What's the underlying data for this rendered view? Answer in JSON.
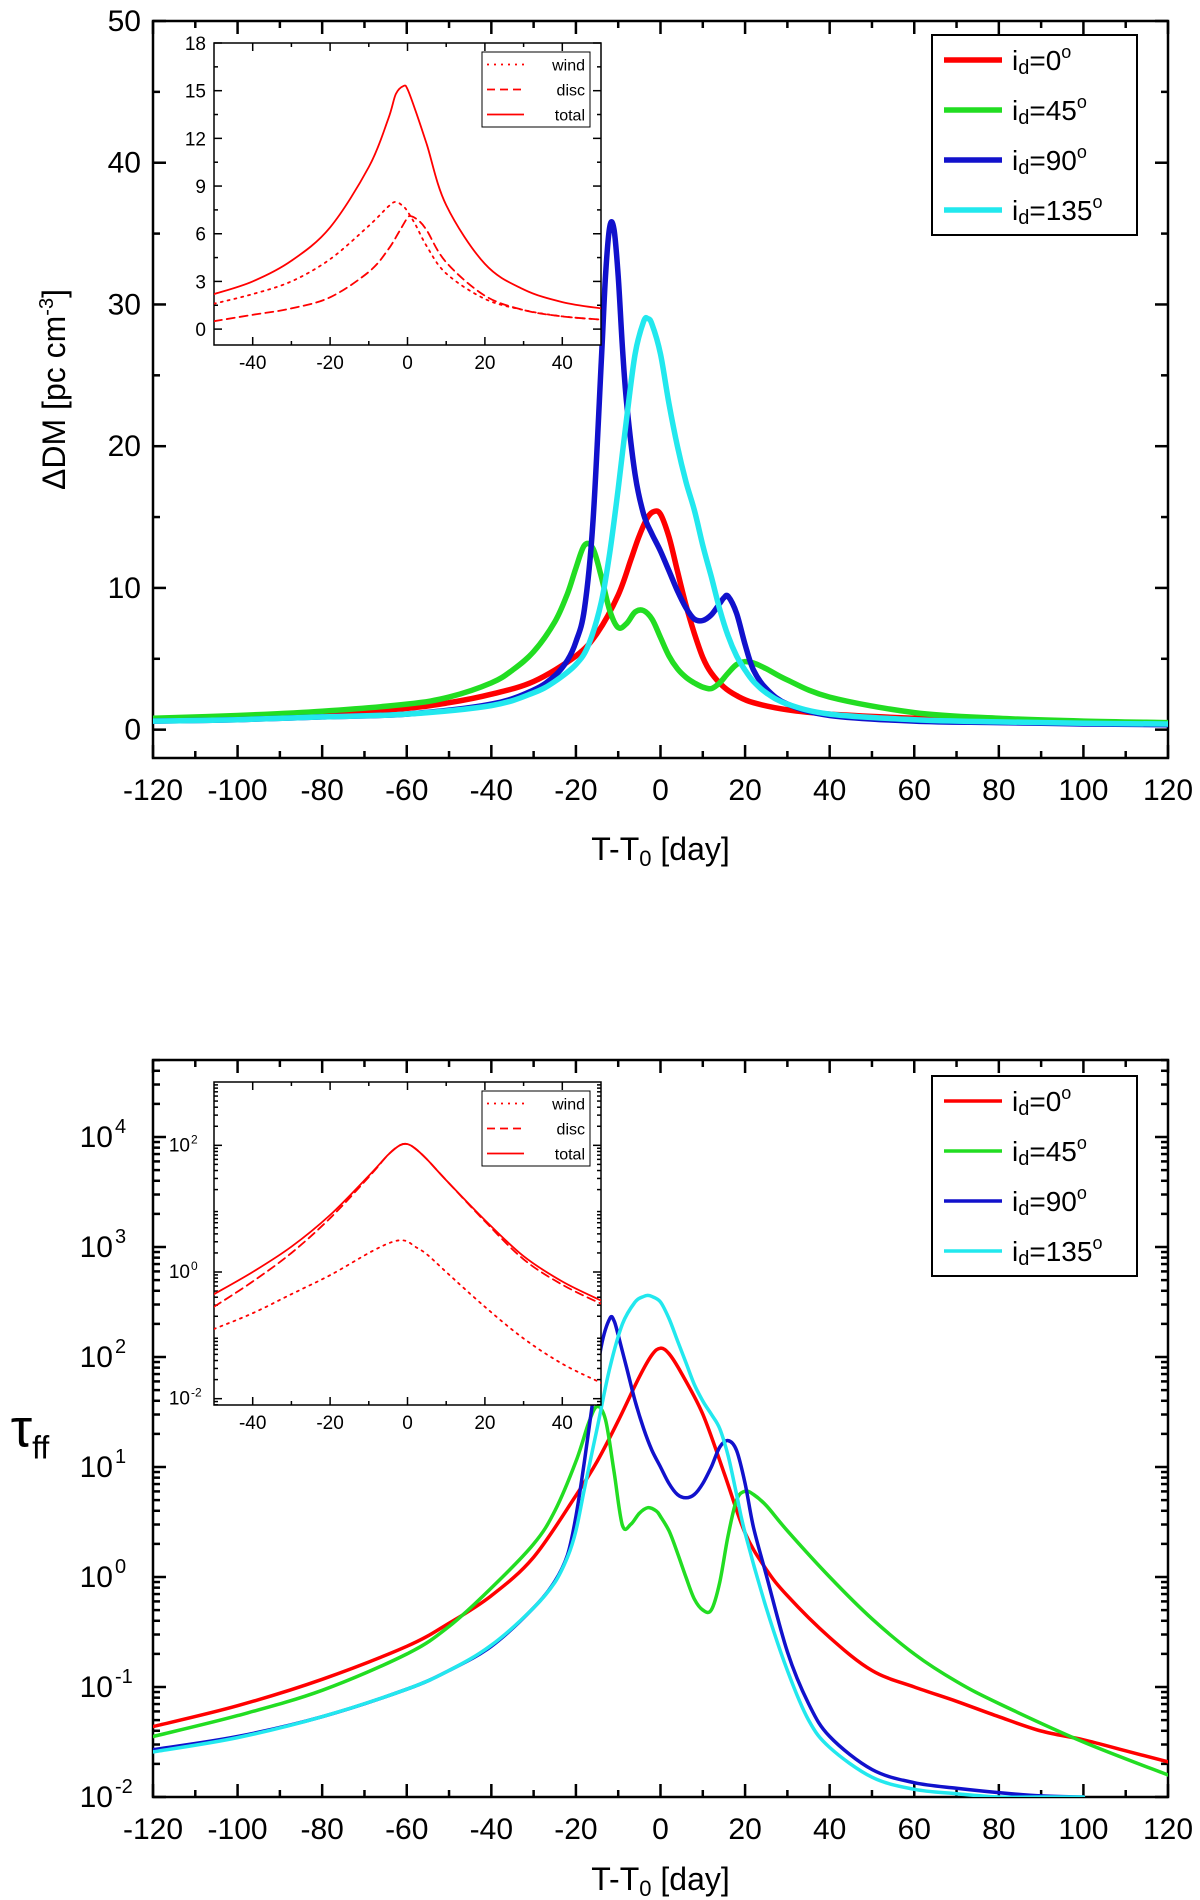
{
  "chart_data": [
    {
      "id": "top",
      "type": "line",
      "ylabel": "ΔDM [pc cm",
      "ylabel_sup": "-3",
      "ylabel_close": "]",
      "xlabel": "T-T",
      "xlabel_sub": "0",
      "xlabel_tail": " [day]",
      "xlim": [
        -120,
        120
      ],
      "ylim": [
        -2,
        50
      ],
      "yscale": "linear",
      "xticks": [
        -120,
        -100,
        -80,
        -60,
        -40,
        -20,
        0,
        20,
        40,
        60,
        80,
        100,
        120
      ],
      "yticks": [
        0,
        10,
        20,
        30,
        40,
        50
      ],
      "legend_position": "top-right",
      "series": [
        {
          "name": "i",
          "name_sub": "d",
          "name_tail": "=0",
          "name_sup": "o",
          "color": "#ff0000",
          "x": [
            -120,
            -100,
            -80,
            -60,
            -50,
            -40,
            -30,
            -20,
            -15,
            -10,
            -7,
            -5,
            -3,
            -1.5,
            0,
            2,
            4,
            6,
            8,
            10,
            12,
            15,
            18,
            22,
            30,
            40,
            60,
            80,
            100,
            120
          ],
          "y": [
            0.7,
            0.9,
            1.1,
            1.5,
            1.9,
            2.5,
            3.4,
            5.2,
            6.8,
            9.5,
            12,
            13.7,
            15,
            15.4,
            15.2,
            13.6,
            11.2,
            8.8,
            6.8,
            5.1,
            4,
            3,
            2.4,
            1.9,
            1.4,
            1.1,
            0.8,
            0.6,
            0.5,
            0.4
          ]
        },
        {
          "name": "i",
          "name_sub": "d",
          "name_tail": "=45",
          "name_sup": "o",
          "color": "#22dd22",
          "x": [
            -120,
            -100,
            -80,
            -60,
            -50,
            -40,
            -35,
            -30,
            -25,
            -22,
            -20,
            -18,
            -16,
            -14,
            -12,
            -10,
            -8,
            -6,
            -4,
            -2,
            0,
            2,
            4,
            6,
            8,
            10,
            12,
            14,
            16,
            18,
            20,
            22,
            25,
            30,
            40,
            60,
            80,
            100,
            120
          ],
          "y": [
            0.8,
            1.0,
            1.3,
            1.8,
            2.3,
            3.3,
            4.2,
            5.5,
            7.6,
            9.6,
            11.4,
            13.0,
            12.8,
            10.8,
            8.4,
            7.2,
            7.5,
            8.3,
            8.4,
            7.8,
            6.5,
            5.2,
            4.3,
            3.7,
            3.3,
            3.0,
            2.9,
            3.3,
            4.0,
            4.6,
            4.8,
            4.7,
            4.3,
            3.5,
            2.3,
            1.2,
            0.8,
            0.6,
            0.5
          ]
        },
        {
          "name": "i",
          "name_sub": "d",
          "name_tail": "=90",
          "name_sup": "o",
          "color": "#1111cc",
          "x": [
            -120,
            -100,
            -80,
            -60,
            -40,
            -30,
            -25,
            -22,
            -20,
            -18,
            -16,
            -14,
            -13,
            -12,
            -11,
            -10,
            -9,
            -8,
            -6,
            -4,
            -2,
            0,
            2,
            4,
            6,
            8,
            10,
            12,
            14,
            15,
            16,
            18,
            20,
            22,
            25,
            30,
            40,
            60,
            80,
            100,
            120
          ],
          "y": [
            0.6,
            0.7,
            0.9,
            1.1,
            1.8,
            2.8,
            3.8,
            4.9,
            6.2,
            8.5,
            14.5,
            26,
            32,
            35.5,
            35.3,
            32,
            27,
            23,
            18,
            15.2,
            13.8,
            12.6,
            11.2,
            9.8,
            8.6,
            7.8,
            7.7,
            8.1,
            8.9,
            9.3,
            9.4,
            8.2,
            6,
            4.2,
            2.9,
            1.8,
            1,
            0.6,
            0.5,
            0.4,
            0.35
          ]
        },
        {
          "name": "i",
          "name_sub": "d",
          "name_tail": "=135",
          "name_sup": "o",
          "color": "#22e8ee",
          "x": [
            -120,
            -100,
            -80,
            -60,
            -40,
            -30,
            -25,
            -20,
            -17,
            -14,
            -12,
            -10,
            -8,
            -6,
            -4,
            -3,
            -2,
            0,
            2,
            4,
            6,
            8,
            10,
            12,
            14,
            16,
            18,
            20,
            22,
            25,
            30,
            40,
            60,
            80,
            100,
            120
          ],
          "y": [
            0.6,
            0.7,
            0.9,
            1.1,
            1.7,
            2.6,
            3.4,
            4.6,
            6,
            9,
            12.5,
            17,
            22,
            26.5,
            28.8,
            29,
            28.6,
            26.5,
            23,
            20,
            17.5,
            15.5,
            13,
            10.8,
            8.5,
            6.6,
            5.2,
            4.2,
            3.4,
            2.6,
            1.8,
            1.1,
            0.7,
            0.55,
            0.45,
            0.4
          ]
        }
      ],
      "inset": {
        "xlim": [
          -50,
          50
        ],
        "ylim": [
          -1,
          18
        ],
        "xticks": [
          -40,
          -20,
          0,
          20,
          40
        ],
        "yticks": [
          0,
          3,
          6,
          9,
          12,
          15,
          18
        ],
        "yscale": "linear",
        "legend_position": "top-right",
        "color": "#ff0000",
        "series": [
          {
            "name": "wind",
            "style": "dotted",
            "x": [
              -50,
              -40,
              -30,
              -20,
              -10,
              -5,
              -3,
              -1,
              0,
              2,
              5,
              10,
              20,
              30,
              40,
              50
            ],
            "y": [
              1.6,
              2.2,
              3.0,
              4.4,
              6.5,
              7.7,
              8.0,
              7.7,
              7.4,
              6.6,
              5.2,
              3.5,
              1.9,
              1.2,
              0.8,
              0.6
            ]
          },
          {
            "name": "disc",
            "style": "dashed",
            "x": [
              -50,
              -40,
              -30,
              -20,
              -10,
              -5,
              -2,
              0,
              1,
              3,
              5,
              10,
              20,
              30,
              40,
              50
            ],
            "y": [
              0.5,
              0.9,
              1.3,
              2.0,
              3.6,
              5.0,
              6.2,
              7.0,
              7.1,
              6.8,
              6.2,
              4.2,
              2.1,
              1.2,
              0.8,
              0.6
            ]
          },
          {
            "name": "total",
            "style": "solid",
            "x": [
              -50,
              -40,
              -30,
              -20,
              -10,
              -5,
              -3,
              -1,
              0,
              2,
              5,
              10,
              20,
              30,
              40,
              50
            ],
            "y": [
              2.2,
              3.0,
              4.3,
              6.4,
              10.2,
              13.2,
              14.8,
              15.3,
              15.1,
              13.8,
              11.6,
              7.8,
              4.1,
              2.5,
              1.7,
              1.3
            ]
          }
        ]
      }
    },
    {
      "id": "bottom",
      "type": "line",
      "ylabel": "τ",
      "ylabel_sub": "ff",
      "xlabel": "T-T",
      "xlabel_sub": "0",
      "xlabel_tail": " [day]",
      "xlim": [
        -120,
        120
      ],
      "ylim_log10": [
        -2,
        4.7
      ],
      "yscale": "log",
      "xticks": [
        -120,
        -100,
        -80,
        -60,
        -40,
        -20,
        0,
        20,
        40,
        60,
        80,
        100,
        120
      ],
      "yticks_exp": [
        -2,
        -1,
        0,
        1,
        2,
        3,
        4
      ],
      "tick_base": "10",
      "legend_position": "top-right",
      "series": [
        {
          "name": "i",
          "name_sub": "d",
          "name_tail": "=0",
          "name_sup": "o",
          "color": "#ff0000",
          "x": [
            -120,
            -100,
            -80,
            -60,
            -50,
            -40,
            -30,
            -20,
            -15,
            -10,
            -5,
            -2,
            0,
            2,
            5,
            10,
            15,
            20,
            25,
            30,
            40,
            50,
            60,
            70,
            80,
            90,
            100,
            110,
            120
          ],
          "log10y": [
            -1.36,
            -1.17,
            -0.93,
            -0.63,
            -0.42,
            -0.17,
            0.18,
            0.74,
            1.05,
            1.42,
            1.82,
            2.02,
            2.08,
            2.03,
            1.85,
            1.48,
            0.95,
            0.4,
            0.07,
            -0.17,
            -0.55,
            -0.85,
            -1.0,
            -1.13,
            -1.27,
            -1.4,
            -1.48,
            -1.58,
            -1.68
          ]
        },
        {
          "name": "i",
          "name_sub": "d",
          "name_tail": "=45",
          "name_sup": "o",
          "color": "#22dd22",
          "x": [
            -120,
            -100,
            -80,
            -60,
            -50,
            -40,
            -30,
            -25,
            -20,
            -17,
            -15,
            -13,
            -11,
            -9,
            -7,
            -5,
            -3,
            -1,
            0,
            2,
            4,
            6,
            8,
            10,
            12,
            14,
            16,
            18,
            20,
            22,
            25,
            30,
            40,
            50,
            60,
            70,
            80,
            100,
            120
          ],
          "log10y": [
            -1.45,
            -1.26,
            -1.03,
            -0.7,
            -0.45,
            -0.1,
            0.3,
            0.6,
            1.05,
            1.4,
            1.55,
            1.43,
            0.96,
            0.47,
            0.48,
            0.58,
            0.63,
            0.6,
            0.55,
            0.42,
            0.22,
            0.0,
            -0.2,
            -0.3,
            -0.3,
            -0.05,
            0.38,
            0.7,
            0.78,
            0.75,
            0.65,
            0.42,
            0.0,
            -0.38,
            -0.7,
            -0.95,
            -1.15,
            -1.5,
            -1.8
          ]
        },
        {
          "name": "i",
          "name_sub": "d",
          "name_tail": "=90",
          "name_sup": "o",
          "color": "#1111cc",
          "x": [
            -120,
            -100,
            -80,
            -60,
            -50,
            -40,
            -30,
            -25,
            -22,
            -20,
            -18,
            -16,
            -14,
            -12,
            -11,
            -10,
            -8,
            -6,
            -4,
            -2,
            0,
            2,
            4,
            6,
            8,
            10,
            12,
            14,
            16,
            18,
            20,
            22,
            25,
            30,
            35,
            40,
            50,
            60,
            70,
            80,
            90,
            100
          ],
          "log10y": [
            -1.57,
            -1.45,
            -1.27,
            -1.02,
            -0.85,
            -0.63,
            -0.28,
            -0.04,
            0.2,
            0.55,
            1.05,
            1.6,
            2.1,
            2.35,
            2.33,
            2.2,
            1.9,
            1.6,
            1.35,
            1.15,
            1.0,
            0.85,
            0.75,
            0.72,
            0.75,
            0.85,
            1.0,
            1.18,
            1.24,
            1.15,
            0.85,
            0.45,
            0.02,
            -0.68,
            -1.15,
            -1.45,
            -1.75,
            -1.87,
            -1.92,
            -1.96,
            -1.99,
            -2.0
          ]
        },
        {
          "name": "i",
          "name_sub": "d",
          "name_tail": "=135",
          "name_sup": "o",
          "color": "#22e8ee",
          "x": [
            -120,
            -100,
            -80,
            -60,
            -50,
            -40,
            -30,
            -25,
            -22,
            -20,
            -18,
            -15,
            -12,
            -9,
            -6,
            -4,
            -3,
            -2,
            0,
            2,
            4,
            6,
            8,
            10,
            12,
            14,
            16,
            18,
            20,
            25,
            30,
            35,
            40,
            50,
            60,
            70,
            80,
            90,
            100
          ],
          "log10y": [
            -1.59,
            -1.46,
            -1.27,
            -1.02,
            -0.85,
            -0.62,
            -0.28,
            -0.05,
            0.18,
            0.42,
            0.8,
            1.35,
            1.9,
            2.3,
            2.5,
            2.55,
            2.56,
            2.55,
            2.5,
            2.35,
            2.15,
            1.95,
            1.75,
            1.6,
            1.48,
            1.35,
            1.1,
            0.75,
            0.4,
            -0.28,
            -0.85,
            -1.3,
            -1.55,
            -1.82,
            -1.93,
            -1.97,
            -2.0,
            -2.0,
            -2.0
          ]
        }
      ],
      "inset": {
        "xlim": [
          -50,
          50
        ],
        "ylim_log10": [
          -2.1,
          3
        ],
        "xticks": [
          -40,
          -20,
          0,
          20,
          40
        ],
        "yticks_exp": [
          -2,
          0,
          2
        ],
        "tick_base": "10",
        "yscale": "log",
        "legend_position": "top-right",
        "color": "#ff0000",
        "series": [
          {
            "name": "wind",
            "style": "dotted",
            "x": [
              -50,
              -40,
              -30,
              -20,
              -10,
              -5,
              -2,
              0,
              2,
              5,
              10,
              20,
              30,
              40,
              50
            ],
            "log10y": [
              -0.9,
              -0.65,
              -0.35,
              -0.05,
              0.3,
              0.45,
              0.5,
              0.48,
              0.4,
              0.28,
              0.0,
              -0.55,
              -1.05,
              -1.45,
              -1.75
            ]
          },
          {
            "name": "disc",
            "style": "dashed",
            "x": [
              -50,
              -40,
              -30,
              -20,
              -10,
              -5,
              -2,
              0,
              2,
              5,
              10,
              20,
              30,
              40,
              50
            ],
            "log10y": [
              -0.55,
              -0.15,
              0.3,
              0.85,
              1.5,
              1.85,
              2.0,
              2.02,
              1.95,
              1.78,
              1.45,
              0.8,
              0.2,
              -0.2,
              -0.5
            ]
          },
          {
            "name": "total",
            "style": "solid",
            "x": [
              -50,
              -40,
              -30,
              -20,
              -10,
              -5,
              -2,
              0,
              2,
              5,
              10,
              20,
              30,
              40,
              50
            ],
            "log10y": [
              -0.35,
              0.0,
              0.4,
              0.9,
              1.52,
              1.85,
              2.0,
              2.02,
              1.95,
              1.78,
              1.45,
              0.82,
              0.25,
              -0.15,
              -0.45
            ]
          }
        ]
      }
    }
  ]
}
